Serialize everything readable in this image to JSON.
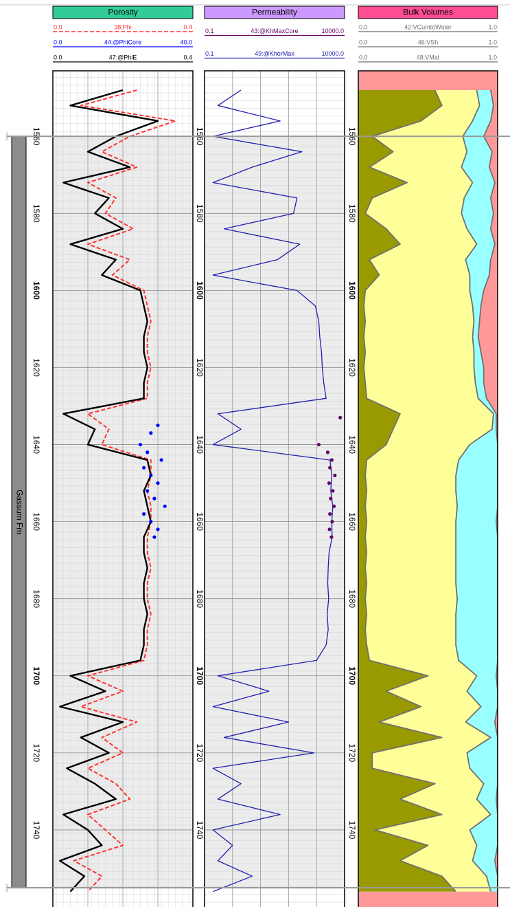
{
  "chart_data": {
    "type": "well_log",
    "ylim": [
      1543,
      1760
    ],
    "yticks": [
      1560,
      1580,
      1600,
      1620,
      1640,
      1660,
      1680,
      1700,
      1720,
      1740
    ],
    "zones": [
      {
        "name": "Gassum Fm",
        "top": 1560,
        "bottom": 1755,
        "color": "#8c8c8c"
      }
    ],
    "depths": [
      1548,
      1552,
      1556,
      1560,
      1564,
      1568,
      1572,
      1576,
      1580,
      1584,
      1588,
      1592,
      1596,
      1600,
      1604,
      1608,
      1612,
      1616,
      1620,
      1624,
      1628,
      1632,
      1636,
      1640,
      1644,
      1648,
      1652,
      1656,
      1660,
      1664,
      1668,
      1672,
      1676,
      1680,
      1684,
      1688,
      1692,
      1696,
      1700,
      1704,
      1708,
      1712,
      1716,
      1720,
      1724,
      1728,
      1732,
      1736,
      1740,
      1744,
      1748,
      1752,
      1756
    ],
    "tracks": [
      {
        "title": "Porosity",
        "header_color": "#33cc99",
        "xscale": "linear",
        "grid": true,
        "xticks": [
          0,
          0.1,
          0.2,
          0.3,
          0.4
        ],
        "series": [
          {
            "name": "38:Phi",
            "type": "line",
            "color": "#ff3333",
            "dash": true,
            "xlim": [
              {
                "value": 0,
                "label": "0.0"
              },
              {
                "value": 0.4,
                "label": "0.4"
              }
            ],
            "values": [
              0.24,
              0.08,
              0.35,
              0.22,
              0.14,
              0.24,
              0.1,
              0.18,
              0.15,
              0.23,
              0.1,
              0.22,
              0.17,
              0.26,
              0.27,
              0.28,
              0.27,
              0.27,
              0.28,
              0.27,
              0.27,
              0.1,
              0.16,
              0.14,
              0.28,
              0.28,
              0.27,
              0.28,
              0.28,
              0.27,
              0.27,
              0.28,
              0.27,
              0.27,
              0.28,
              0.27,
              0.27,
              0.26,
              0.1,
              0.2,
              0.08,
              0.24,
              0.14,
              0.2,
              0.1,
              0.18,
              0.22,
              0.1,
              0.15,
              0.2,
              0.06,
              0.14,
              0.1
            ]
          },
          {
            "name": "44:@PhiCore",
            "type": "points",
            "color": "#0000ff",
            "xlim": [
              {
                "value": 0,
                "label": "0.0"
              },
              {
                "value": 40,
                "label": "40.0"
              }
            ],
            "depths": [
              1635,
              1637,
              1640,
              1642,
              1644,
              1646,
              1648,
              1650,
              1652,
              1654,
              1656,
              1658,
              1660,
              1662,
              1664
            ],
            "values": [
              30,
              28,
              25,
              27,
              31,
              26,
              28,
              30,
              27,
              29,
              32,
              26,
              28,
              30,
              29
            ]
          },
          {
            "name": "47:@PhiE",
            "type": "line",
            "color": "#000000",
            "xlim": [
              {
                "value": 0,
                "label": "0.0"
              },
              {
                "value": 0.4,
                "label": "0.4"
              }
            ],
            "values": [
              0.2,
              0.05,
              0.3,
              0.18,
              0.1,
              0.22,
              0.03,
              0.16,
              0.12,
              0.2,
              0.05,
              0.18,
              0.14,
              0.25,
              0.26,
              0.27,
              0.26,
              0.26,
              0.27,
              0.26,
              0.26,
              0.03,
              0.12,
              0.1,
              0.27,
              0.28,
              0.26,
              0.27,
              0.28,
              0.26,
              0.26,
              0.27,
              0.26,
              0.26,
              0.27,
              0.26,
              0.26,
              0.25,
              0.05,
              0.15,
              0.02,
              0.2,
              0.08,
              0.16,
              0.04,
              0.12,
              0.18,
              0.03,
              0.1,
              0.14,
              0.02,
              0.09,
              0.05
            ]
          }
        ]
      },
      {
        "title": "Permeability",
        "header_color": "#cc99ff",
        "xscale": "log",
        "grid": true,
        "xticks": [
          0.1,
          1,
          10,
          100,
          1000,
          10000
        ],
        "series": [
          {
            "name": "43:@KhMaxCore",
            "type": "points",
            "color": "#660066",
            "xlim": [
              0.1,
              {
                "value": 10000,
                "label": "10000.0"
              }
            ],
            "depths": [
              1633,
              1640,
              1642,
              1644,
              1646,
              1648,
              1650,
              1652,
              1654,
              1656,
              1658,
              1660,
              1662,
              1664
            ],
            "values": [
              7000,
              1200,
              2500,
              3500,
              3000,
              4500,
              2800,
              3800,
              3200,
              4200,
              3000,
              3600,
              2900,
              3400
            ]
          },
          {
            "name": "49:@KhorMax",
            "type": "line",
            "color": "#1f1fb0",
            "xlim": [
              0.1,
              {
                "value": 10000,
                "label": "10000.0"
              }
            ],
            "values": [
              2,
              0.3,
              50,
              0.2,
              300,
              5,
              0.2,
              200,
              150,
              0.5,
              250,
              40,
              0.2,
              200,
              900,
              1200,
              1300,
              1500,
              1600,
              1800,
              2200,
              0.3,
              2,
              0.2,
              3000,
              3500,
              3200,
              3800,
              3500,
              3600,
              2800,
              2600,
              2500,
              2700,
              2400,
              2600,
              2200,
              1000,
              0.3,
              20,
              0.2,
              100,
              0.5,
              800,
              0.2,
              2,
              0.3,
              50,
              0.2,
              1,
              0.3,
              5,
              0.2
            ]
          }
        ]
      },
      {
        "title": "Bulk Volumes",
        "header_color": "#ff4d94",
        "xscale": "linear",
        "grid": false,
        "background": "#ff9999",
        "series": [
          {
            "name": "42:VCumtoWater",
            "type": "line",
            "color": "#707070",
            "fill": "#99ffff",
            "xlim": [
              {
                "value": 0,
                "label": "0.0"
              },
              {
                "value": 1,
                "label": "1.0"
              }
            ],
            "values": [
              0.95,
              0.97,
              0.95,
              0.9,
              0.96,
              0.94,
              0.98,
              0.95,
              0.97,
              0.95,
              0.98,
              0.95,
              0.94,
              0.9,
              0.88,
              0.87,
              0.86,
              0.88,
              0.9,
              0.9,
              0.92,
              0.99,
              0.99,
              1,
              1,
              1,
              1,
              1,
              0.99,
              1,
              1,
              1,
              1,
              1,
              1,
              1,
              1,
              1,
              0.99,
              1,
              1,
              0.98,
              1,
              1,
              1,
              1,
              0.99,
              1,
              1,
              1,
              0.98,
              1,
              1
            ]
          },
          {
            "name": "46:VSh",
            "type": "line",
            "color": "#707070",
            "fill": "#999900",
            "xlim": [
              {
                "value": 0,
                "label": "0.0"
              },
              {
                "value": 1,
                "label": "1.0"
              }
            ],
            "values": [
              0.55,
              0.6,
              0.45,
              0.1,
              0.25,
              0.08,
              0.35,
              0.1,
              0.05,
              0.2,
              0.3,
              0.08,
              0.15,
              0.05,
              0.04,
              0.05,
              0.04,
              0.05,
              0.04,
              0.05,
              0.06,
              0.3,
              0.25,
              0.2,
              0.06,
              0.05,
              0.06,
              0.05,
              0.06,
              0.05,
              0.06,
              0.05,
              0.06,
              0.05,
              0.06,
              0.05,
              0.06,
              0.08,
              0.5,
              0.2,
              0.45,
              0.15,
              0.6,
              0.1,
              0.1,
              0.55,
              0.3,
              0.6,
              0.12,
              0.5,
              0.3,
              0.6,
              0.7
            ]
          },
          {
            "name": "48:VMat",
            "type": "line",
            "color": "#707070",
            "fill": "#ffff99",
            "xlim": [
              {
                "value": 0,
                "label": "0.0"
              },
              {
                "value": 1,
                "label": "1.0"
              }
            ],
            "values": [
              0.85,
              0.87,
              0.82,
              0.75,
              0.78,
              0.74,
              0.82,
              0.76,
              0.74,
              0.78,
              0.85,
              0.77,
              0.8,
              0.8,
              0.82,
              0.83,
              0.82,
              0.83,
              0.83,
              0.84,
              0.86,
              0.97,
              0.96,
              0.8,
              0.72,
              0.7,
              0.7,
              0.71,
              0.7,
              0.7,
              0.7,
              0.7,
              0.7,
              0.71,
              0.7,
              0.7,
              0.7,
              0.72,
              0.85,
              0.78,
              0.88,
              0.77,
              0.95,
              0.78,
              0.8,
              0.9,
              0.85,
              0.95,
              0.8,
              0.85,
              0.82,
              0.92,
              0.95
            ]
          }
        ]
      }
    ]
  }
}
